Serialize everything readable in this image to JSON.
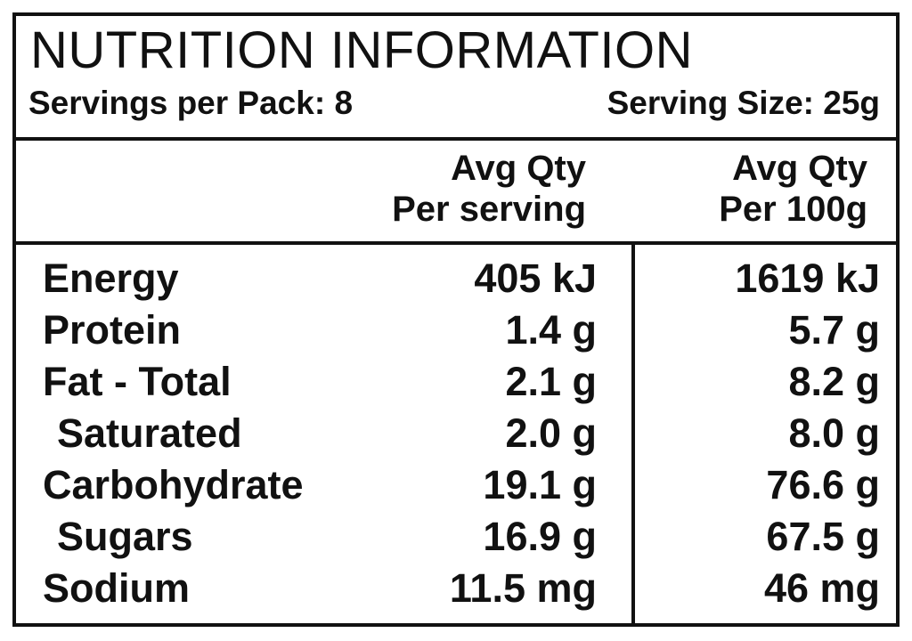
{
  "header": {
    "title": "NUTRITION INFORMATION",
    "servings_per_pack": "Servings per Pack: 8",
    "serving_size": "Serving Size: 25g"
  },
  "columns": {
    "per_serving_line1": "Avg Qty",
    "per_serving_line2": "Per serving",
    "per_100g_line1": "Avg Qty",
    "per_100g_line2": "Per 100g"
  },
  "rows": [
    {
      "nutrient": "Energy",
      "per_serving": "405 kJ",
      "per_100g": "1619 kJ"
    },
    {
      "nutrient": "Protein",
      "per_serving": "1.4 g",
      "per_100g": "5.7 g"
    },
    {
      "nutrient": "Fat - Total",
      "per_serving": "2.1 g",
      "per_100g": "8.2 g"
    },
    {
      "nutrient": "Saturated",
      "per_serving": "2.0 g",
      "per_100g": "8.0 g"
    },
    {
      "nutrient": "Carbohydrate",
      "per_serving": "19.1 g",
      "per_100g": "76.6 g"
    },
    {
      "nutrient": "Sugars",
      "per_serving": "16.9 g",
      "per_100g": "67.5 g"
    },
    {
      "nutrient": "Sodium",
      "per_serving": "11.5 mg",
      "per_100g": "46 mg"
    }
  ]
}
